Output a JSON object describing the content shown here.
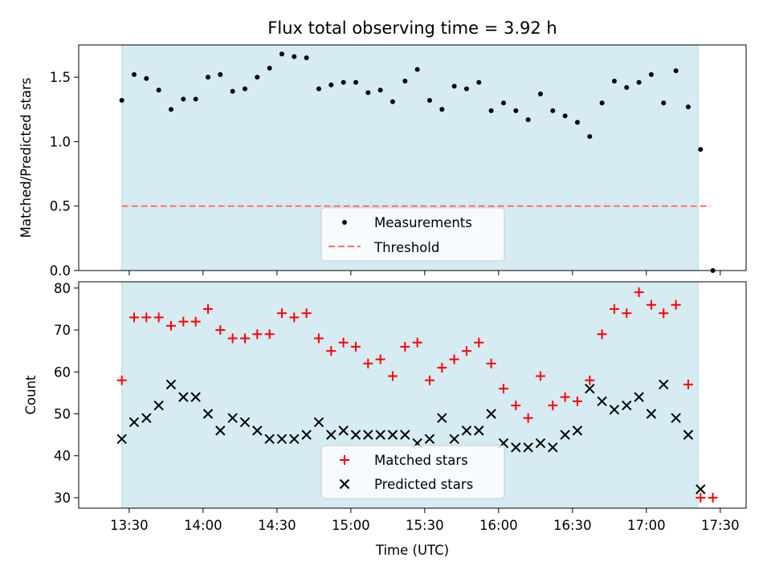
{
  "chart_data": [
    {
      "type": "scatter",
      "title": "Flux total observing time = 3.92 h",
      "xlabel": "",
      "ylabel": "Matched/Predicted stars",
      "ylim": [
        0.0,
        1.75
      ],
      "yticks": [
        "0.0",
        "0.5",
        "1.0",
        "1.5"
      ],
      "shaded_span": {
        "start": "13:27",
        "end": "17:21",
        "color": "#add8e6"
      },
      "legend_position": "lower-center",
      "series": [
        {
          "name": "Measurements",
          "marker": "dot",
          "color": "#000000",
          "x": [
            "13:27",
            "13:32",
            "13:37",
            "13:42",
            "13:47",
            "13:52",
            "13:57",
            "14:02",
            "14:07",
            "14:12",
            "14:17",
            "14:22",
            "14:27",
            "14:32",
            "14:37",
            "14:42",
            "14:47",
            "14:52",
            "14:57",
            "15:02",
            "15:07",
            "15:12",
            "15:17",
            "15:22",
            "15:27",
            "15:32",
            "15:37",
            "15:42",
            "15:47",
            "15:52",
            "15:57",
            "16:02",
            "16:07",
            "16:12",
            "16:17",
            "16:22",
            "16:27",
            "16:32",
            "16:37",
            "16:42",
            "16:47",
            "16:52",
            "16:57",
            "17:02",
            "17:07",
            "17:12",
            "17:17",
            "17:22",
            "17:27"
          ],
          "y": [
            1.32,
            1.52,
            1.49,
            1.4,
            1.25,
            1.33,
            1.33,
            1.5,
            1.52,
            1.39,
            1.41,
            1.5,
            1.57,
            1.68,
            1.66,
            1.65,
            1.41,
            1.44,
            1.46,
            1.46,
            1.38,
            1.4,
            1.31,
            1.47,
            1.56,
            1.32,
            1.25,
            1.43,
            1.41,
            1.46,
            1.24,
            1.3,
            1.24,
            1.17,
            1.37,
            1.24,
            1.2,
            1.15,
            1.04,
            1.3,
            1.47,
            1.42,
            1.46,
            1.52,
            1.3,
            1.55,
            1.27,
            0.94,
            0.0
          ]
        },
        {
          "name": "Threshold",
          "marker": "dashed-line",
          "color": "#ff6f6f",
          "x": [
            "13:27",
            "17:26"
          ],
          "y": [
            0.5,
            0.5
          ]
        }
      ]
    },
    {
      "type": "scatter",
      "title": "",
      "xlabel": "Time (UTC)",
      "ylabel": "Count",
      "ylim": [
        27.5,
        81.5
      ],
      "yticks": [
        "30",
        "40",
        "50",
        "60",
        "70",
        "80"
      ],
      "xticks": [
        "13:30",
        "14:00",
        "14:30",
        "15:00",
        "15:30",
        "16:00",
        "16:30",
        "17:00",
        "17:30"
      ],
      "shaded_span": {
        "start": "13:27",
        "end": "17:21",
        "color": "#add8e6"
      },
      "legend_position": "lower-center",
      "series": [
        {
          "name": "Matched stars",
          "marker": "plus",
          "color": "#ff0000",
          "x": [
            "13:27",
            "13:32",
            "13:37",
            "13:42",
            "13:47",
            "13:52",
            "13:57",
            "14:02",
            "14:07",
            "14:12",
            "14:17",
            "14:22",
            "14:27",
            "14:32",
            "14:37",
            "14:42",
            "14:47",
            "14:52",
            "14:57",
            "15:02",
            "15:07",
            "15:12",
            "15:17",
            "15:22",
            "15:27",
            "15:32",
            "15:37",
            "15:42",
            "15:47",
            "15:52",
            "15:57",
            "16:02",
            "16:07",
            "16:12",
            "16:17",
            "16:22",
            "16:27",
            "16:32",
            "16:37",
            "16:42",
            "16:47",
            "16:52",
            "16:57",
            "17:02",
            "17:07",
            "17:12",
            "17:17",
            "17:22",
            "17:27"
          ],
          "y": [
            58,
            73,
            73,
            73,
            71,
            72,
            72,
            75,
            70,
            68,
            68,
            69,
            69,
            74,
            73,
            74,
            68,
            65,
            67,
            66,
            62,
            63,
            59,
            66,
            67,
            58,
            61,
            63,
            65,
            67,
            62,
            56,
            52,
            49,
            59,
            52,
            54,
            53,
            58,
            69,
            75,
            74,
            79,
            76,
            74,
            76,
            57,
            30,
            30
          ]
        },
        {
          "name": "Predicted stars",
          "marker": "x",
          "color": "#000000",
          "x": [
            "13:27",
            "13:32",
            "13:37",
            "13:42",
            "13:47",
            "13:52",
            "13:57",
            "14:02",
            "14:07",
            "14:12",
            "14:17",
            "14:22",
            "14:27",
            "14:32",
            "14:37",
            "14:42",
            "14:47",
            "14:52",
            "14:57",
            "15:02",
            "15:07",
            "15:12",
            "15:17",
            "15:22",
            "15:27",
            "15:32",
            "15:37",
            "15:42",
            "15:47",
            "15:52",
            "15:57",
            "16:02",
            "16:07",
            "16:12",
            "16:17",
            "16:22",
            "16:27",
            "16:32",
            "16:37",
            "16:42",
            "16:47",
            "16:52",
            "16:57",
            "17:02",
            "17:07",
            "17:12",
            "17:17",
            "17:22"
          ],
          "y": [
            44,
            48,
            49,
            52,
            57,
            54,
            54,
            50,
            46,
            49,
            48,
            46,
            44,
            44,
            44,
            45,
            48,
            45,
            46,
            45,
            45,
            45,
            45,
            45,
            43,
            44,
            49,
            44,
            46,
            46,
            50,
            43,
            42,
            42,
            43,
            42,
            45,
            46,
            56,
            53,
            51,
            52,
            54,
            50,
            57,
            49,
            45,
            32
          ]
        }
      ]
    }
  ]
}
